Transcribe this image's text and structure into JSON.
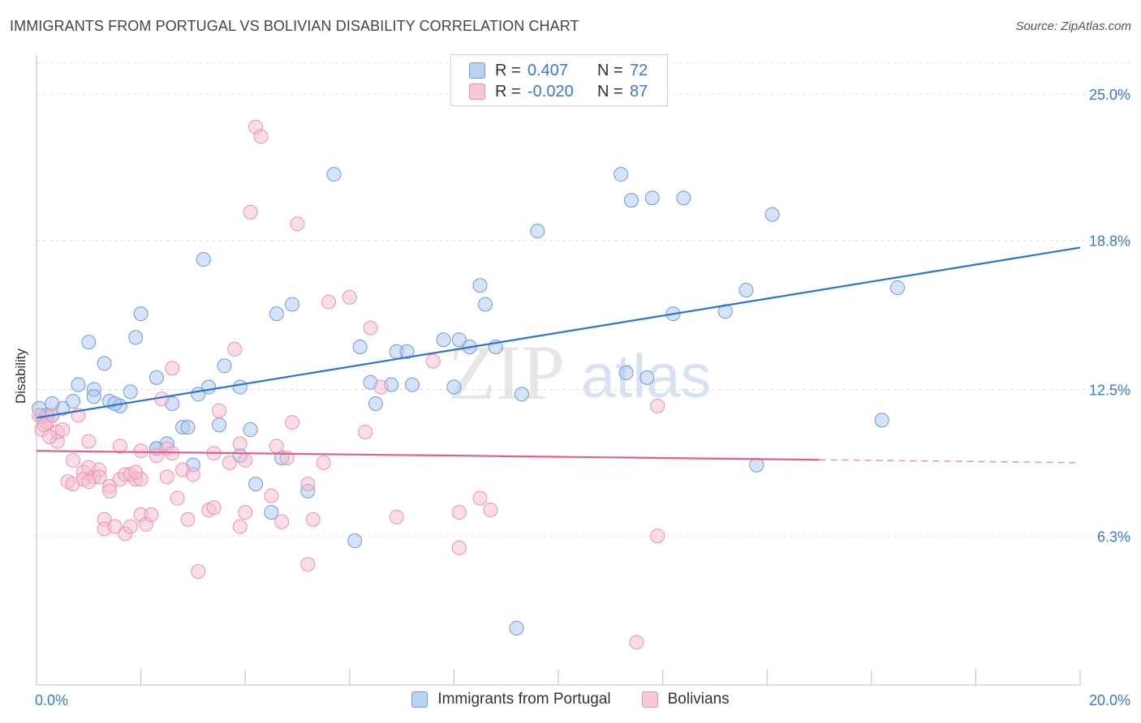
{
  "header": {
    "title": "IMMIGRANTS FROM PORTUGAL VS BOLIVIAN DISABILITY CORRELATION CHART",
    "source": "Source: ZipAtlas.com"
  },
  "legend_top": {
    "rows": [
      {
        "r_label": "R =",
        "r_value": "0.407",
        "n_label": "N =",
        "n_value": "72"
      },
      {
        "r_label": "R =",
        "r_value": "-0.020",
        "n_label": "N =",
        "n_value": "87"
      }
    ]
  },
  "legend_bottom": {
    "items": [
      {
        "label": "Immigrants from Portugal"
      },
      {
        "label": "Bolivians"
      }
    ]
  },
  "watermark": {
    "zip": "ZIP",
    "atlas": "atlas"
  },
  "colors": {
    "blue_fill": "#a9c8ef",
    "blue_stroke": "#6f9ad6",
    "blue_line": "#2a72d4",
    "pink_fill": "#f5bcd0",
    "pink_stroke": "#e892b0",
    "pink_line": "#e0608e",
    "tick_label": "#3a78c9",
    "grid": "#dcdcdc"
  },
  "chart_data": {
    "type": "scatter",
    "title": "IMMIGRANTS FROM PORTUGAL VS BOLIVIAN DISABILITY CORRELATION CHART",
    "xlabel": "",
    "ylabel": "Disability",
    "xlim": [
      0,
      20
    ],
    "ylim": [
      0,
      26.3
    ],
    "x_tick_labels": [
      "0.0%",
      "20.0%"
    ],
    "y_ticks": [
      6.3,
      12.5,
      18.8,
      25.0
    ],
    "y_tick_labels": [
      "6.3%",
      "12.5%",
      "18.8%",
      "25.0%"
    ],
    "grid": true,
    "legend_position": "top-center",
    "series": [
      {
        "name": "Immigrants from Portugal",
        "color": "#a9c8ef",
        "trend": {
          "x0": 0.0,
          "y0": 11.3,
          "x1": 20.0,
          "y1": 18.5,
          "dashed_from": null
        },
        "points": [
          [
            0.1,
            11.4
          ],
          [
            0.3,
            11.4
          ],
          [
            0.5,
            11.7
          ],
          [
            0.3,
            11.9
          ],
          [
            0.7,
            12.0
          ],
          [
            0.8,
            12.7
          ],
          [
            1.1,
            12.5
          ],
          [
            1.1,
            12.2
          ],
          [
            1.4,
            12.0
          ],
          [
            1.6,
            11.8
          ],
          [
            1.8,
            12.4
          ],
          [
            1.0,
            14.5
          ],
          [
            1.3,
            13.6
          ],
          [
            1.9,
            14.7
          ],
          [
            2.0,
            15.7
          ],
          [
            2.3,
            13.0
          ],
          [
            2.3,
            10.0
          ],
          [
            2.5,
            10.2
          ],
          [
            2.6,
            11.9
          ],
          [
            2.8,
            10.9
          ],
          [
            2.9,
            10.9
          ],
          [
            3.0,
            9.3
          ],
          [
            3.1,
            12.3
          ],
          [
            3.2,
            18.0
          ],
          [
            3.3,
            12.6
          ],
          [
            3.5,
            11.0
          ],
          [
            3.6,
            13.5
          ],
          [
            3.9,
            12.6
          ],
          [
            3.9,
            9.7
          ],
          [
            4.1,
            10.8
          ],
          [
            4.2,
            8.5
          ],
          [
            4.5,
            7.3
          ],
          [
            4.6,
            15.7
          ],
          [
            4.7,
            9.6
          ],
          [
            4.9,
            16.1
          ],
          [
            5.2,
            8.2
          ],
          [
            5.7,
            21.6
          ],
          [
            6.1,
            6.1
          ],
          [
            6.2,
            14.3
          ],
          [
            6.4,
            12.8
          ],
          [
            6.5,
            11.9
          ],
          [
            6.8,
            12.7
          ],
          [
            6.9,
            14.1
          ],
          [
            7.1,
            14.1
          ],
          [
            7.2,
            12.7
          ],
          [
            7.8,
            14.6
          ],
          [
            8.0,
            12.6
          ],
          [
            8.1,
            14.6
          ],
          [
            8.3,
            14.3
          ],
          [
            8.5,
            16.9
          ],
          [
            8.6,
            16.1
          ],
          [
            8.8,
            14.3
          ],
          [
            9.2,
            2.4
          ],
          [
            9.3,
            12.3
          ],
          [
            9.6,
            19.2
          ],
          [
            11.3,
            13.2
          ],
          [
            11.7,
            13.0
          ],
          [
            11.2,
            21.6
          ],
          [
            11.4,
            20.5
          ],
          [
            11.8,
            20.6
          ],
          [
            12.4,
            20.6
          ],
          [
            12.2,
            15.7
          ],
          [
            13.2,
            15.8
          ],
          [
            13.6,
            16.7
          ],
          [
            13.8,
            9.3
          ],
          [
            14.1,
            19.9
          ],
          [
            16.2,
            11.2
          ],
          [
            16.5,
            16.8
          ],
          [
            0.05,
            11.7
          ],
          [
            0.2,
            11.4
          ],
          [
            1.5,
            11.9
          ],
          [
            2.3,
            10.0
          ]
        ]
      },
      {
        "name": "Bolivians",
        "color": "#f5bcd0",
        "trend": {
          "x0": 0.0,
          "y0": 9.9,
          "x1": 20.0,
          "y1": 9.4,
          "dashed_from": 15.0
        },
        "points": [
          [
            0.05,
            11.4
          ],
          [
            0.1,
            10.8
          ],
          [
            0.2,
            11.1
          ],
          [
            0.3,
            11.4
          ],
          [
            0.4,
            10.3
          ],
          [
            0.4,
            10.7
          ],
          [
            0.5,
            10.8
          ],
          [
            0.6,
            8.6
          ],
          [
            0.7,
            9.5
          ],
          [
            0.7,
            8.5
          ],
          [
            0.8,
            11.4
          ],
          [
            0.9,
            9.0
          ],
          [
            0.9,
            8.7
          ],
          [
            1.0,
            10.3
          ],
          [
            1.0,
            9.2
          ],
          [
            1.1,
            8.8
          ],
          [
            1.2,
            9.1
          ],
          [
            1.2,
            8.8
          ],
          [
            1.3,
            7.0
          ],
          [
            1.3,
            6.6
          ],
          [
            1.4,
            8.4
          ],
          [
            1.4,
            8.2
          ],
          [
            1.5,
            6.7
          ],
          [
            1.6,
            10.1
          ],
          [
            1.6,
            8.7
          ],
          [
            1.7,
            6.4
          ],
          [
            1.7,
            8.9
          ],
          [
            1.8,
            6.7
          ],
          [
            1.8,
            8.9
          ],
          [
            1.9,
            8.7
          ],
          [
            2.0,
            9.9
          ],
          [
            2.0,
            8.7
          ],
          [
            2.0,
            7.2
          ],
          [
            2.1,
            6.8
          ],
          [
            2.2,
            7.2
          ],
          [
            2.3,
            9.7
          ],
          [
            2.4,
            12.1
          ],
          [
            2.5,
            10.0
          ],
          [
            2.5,
            8.8
          ],
          [
            2.6,
            9.8
          ],
          [
            2.6,
            13.4
          ],
          [
            2.7,
            7.9
          ],
          [
            2.8,
            9.1
          ],
          [
            2.9,
            7.0
          ],
          [
            3.0,
            8.9
          ],
          [
            3.1,
            4.8
          ],
          [
            3.3,
            7.4
          ],
          [
            3.4,
            9.8
          ],
          [
            3.4,
            7.5
          ],
          [
            3.5,
            11.6
          ],
          [
            3.7,
            9.4
          ],
          [
            3.8,
            14.2
          ],
          [
            3.9,
            10.2
          ],
          [
            3.9,
            6.7
          ],
          [
            4.0,
            9.5
          ],
          [
            4.0,
            7.3
          ],
          [
            4.1,
            20.0
          ],
          [
            4.2,
            23.6
          ],
          [
            4.3,
            23.2
          ],
          [
            4.5,
            8.0
          ],
          [
            4.6,
            10.1
          ],
          [
            4.7,
            6.9
          ],
          [
            4.8,
            9.6
          ],
          [
            4.9,
            11.1
          ],
          [
            5.0,
            19.5
          ],
          [
            5.2,
            8.5
          ],
          [
            5.2,
            5.1
          ],
          [
            5.3,
            7.0
          ],
          [
            5.5,
            9.4
          ],
          [
            5.6,
            16.2
          ],
          [
            6.0,
            16.4
          ],
          [
            6.3,
            10.7
          ],
          [
            6.4,
            15.1
          ],
          [
            6.6,
            12.6
          ],
          [
            6.9,
            7.1
          ],
          [
            7.6,
            13.7
          ],
          [
            8.1,
            7.3
          ],
          [
            8.1,
            5.8
          ],
          [
            8.5,
            7.9
          ],
          [
            8.7,
            7.4
          ],
          [
            11.5,
            1.8
          ],
          [
            11.9,
            6.3
          ],
          [
            11.9,
            11.8
          ],
          [
            0.15,
            11.0
          ],
          [
            0.25,
            10.5
          ],
          [
            1.0,
            8.6
          ],
          [
            1.9,
            9.0
          ]
        ]
      }
    ]
  }
}
